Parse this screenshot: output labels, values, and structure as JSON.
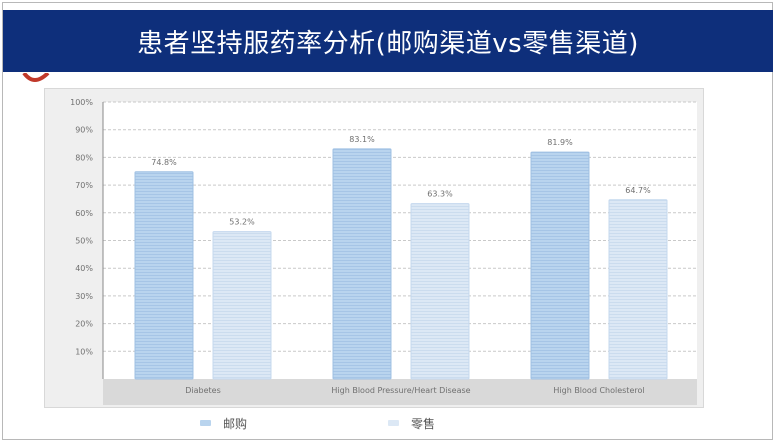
{
  "slide": {
    "title": "患者坚持服药率分析(邮购渠道vs零售渠道)"
  },
  "colors": {
    "title_bar": "#0e2f7b",
    "mail_order": "#b9d4ee",
    "retail": "#dce8f5",
    "grid": "#c9c9c9",
    "label": "#707070"
  },
  "chart_data": {
    "type": "bar",
    "title": "",
    "xlabel": "",
    "ylabel": "",
    "categories": [
      "Diabetes",
      "High Blood Pressure/Heart Disease",
      "High Blood Cholesterol"
    ],
    "series": [
      {
        "name": "邮购",
        "values": [
          74.8,
          83.1,
          81.9
        ],
        "labels": [
          "74.8%",
          "83.1%",
          "81.9%"
        ]
      },
      {
        "name": "零售",
        "values": [
          53.2,
          63.3,
          64.7
        ],
        "labels": [
          "53.2%",
          "63.3%",
          "64.7%"
        ]
      }
    ],
    "ylim": [
      0,
      100
    ],
    "yticks": [
      "10%",
      "20%",
      "30%",
      "40%",
      "50%",
      "60%",
      "70%",
      "80%",
      "90%",
      "100%"
    ],
    "grid": true,
    "legend_placement": "bottom"
  }
}
